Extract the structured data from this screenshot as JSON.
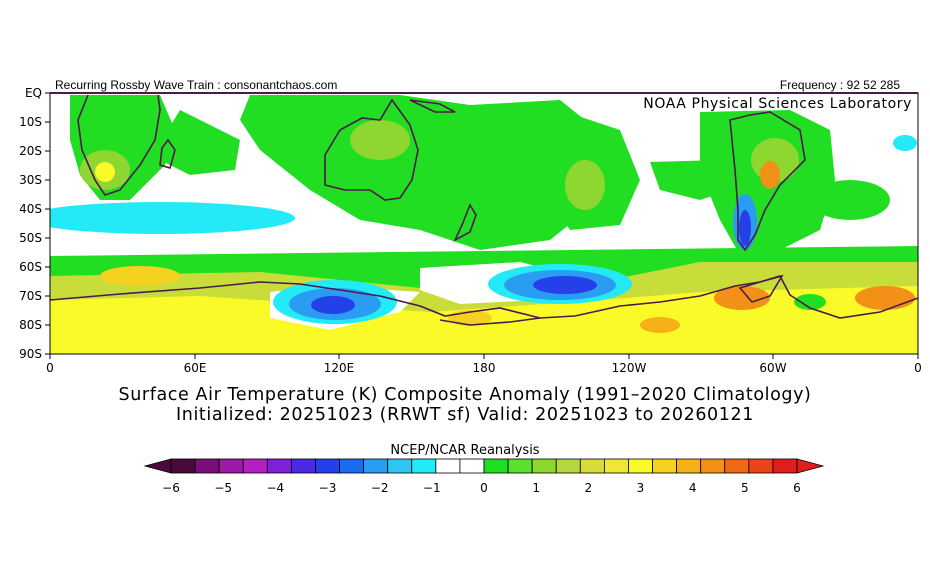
{
  "header": {
    "left": "Recurring Rossby Wave Train : consonantchaos.com",
    "right": "Frequency : 92 52 285",
    "lab": "NOAA Physical Sciences Laboratory"
  },
  "axes": {
    "y_ticks": [
      "EQ",
      "10S",
      "20S",
      "30S",
      "40S",
      "50S",
      "60S",
      "70S",
      "80S",
      "90S"
    ],
    "x_ticks": [
      "0",
      "60E",
      "120E",
      "180",
      "120W",
      "60W",
      "0"
    ]
  },
  "title": {
    "line1": "Surface Air Temperature (K) Composite Anomaly (1991–2020 Climatology)",
    "line2": "Initialized: 20251023 (RRWT sf) Valid: 20251023 to 20260121"
  },
  "source": "NCEP/NCAR Reanalysis",
  "colorbar": {
    "labels": [
      "−6",
      "−5",
      "−4",
      "−3",
      "−2",
      "−1",
      "0",
      "1",
      "2",
      "3",
      "4",
      "5",
      "6"
    ],
    "colors": [
      "#4b0a3c",
      "#7a0f7a",
      "#9c1aa8",
      "#b520c2",
      "#8020d8",
      "#4a2ae2",
      "#2440e8",
      "#1c6cf0",
      "#2a9cf2",
      "#32c4f0",
      "#24eaf8",
      "#ffffff",
      "#ffffff",
      "#22de22",
      "#5ae030",
      "#8ed630",
      "#b4d640",
      "#d8dc3a",
      "#f0e638",
      "#fafa28",
      "#f6d220",
      "#f6b018",
      "#f29018",
      "#ee6a14",
      "#e8461a",
      "#e01e1e"
    ],
    "left_end_color": "#4b0a3c",
    "right_end_color": "#e01e1e"
  },
  "map_colors": {
    "green": "#22de22",
    "light_green": "#8ed630",
    "yellow_green": "#c8dc3a",
    "yellow": "#fafa28",
    "orange": "#f29018",
    "cyan": "#24eaf8",
    "blue": "#2a9cf2",
    "deep_blue": "#2440e8",
    "coast": "#4a1a4a"
  }
}
